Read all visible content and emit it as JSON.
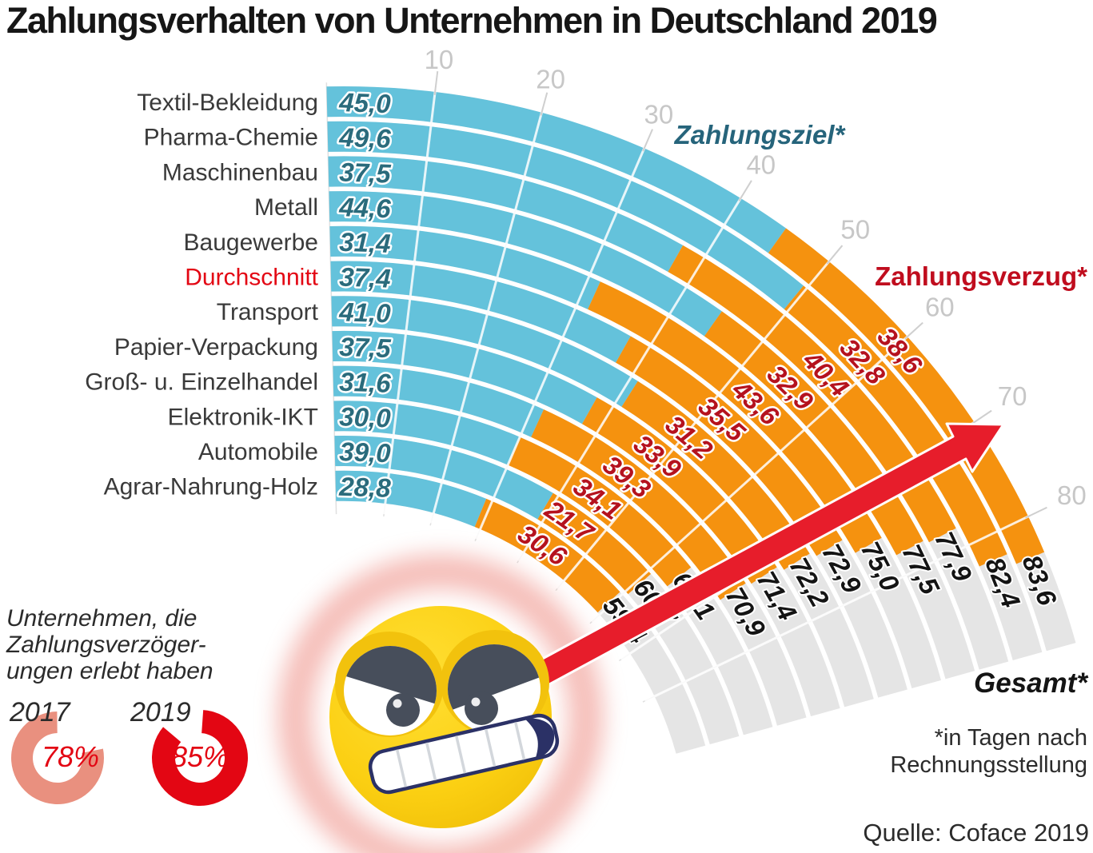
{
  "title": "Zahlungsverhalten von Unternehmen in Deutschland 2019",
  "chart_data": {
    "type": "radial_stacked_bar",
    "unit": "Tage",
    "legend": {
      "ziel": "Zahlungsziel*",
      "verzug": "Zahlungsverzug*",
      "gesamt": "Gesamt*"
    },
    "axis_ticks": [
      10,
      20,
      30,
      40,
      50,
      60,
      70,
      80
    ],
    "series_names": [
      "Zahlungsziel",
      "Zahlungsverzug",
      "Gesamt"
    ],
    "rows": [
      {
        "label": "Textil-Bekleidung",
        "ziel": 45.0,
        "verzug": 38.6,
        "gesamt": 83.6,
        "highlight": false
      },
      {
        "label": "Pharma-Chemie",
        "ziel": 49.6,
        "verzug": 32.8,
        "gesamt": 82.4,
        "highlight": false
      },
      {
        "label": "Maschinenbau",
        "ziel": 37.5,
        "verzug": 40.4,
        "gesamt": 77.9,
        "highlight": false
      },
      {
        "label": "Metall",
        "ziel": 44.6,
        "verzug": 32.9,
        "gesamt": 77.5,
        "highlight": false
      },
      {
        "label": "Baugewerbe",
        "ziel": 31.4,
        "verzug": 43.6,
        "gesamt": 75.0,
        "highlight": false
      },
      {
        "label": "Durchschnitt",
        "ziel": 37.4,
        "verzug": 35.5,
        "gesamt": 72.9,
        "highlight": true
      },
      {
        "label": "Transport",
        "ziel": 41.0,
        "verzug": 31.2,
        "gesamt": 72.2,
        "highlight": false
      },
      {
        "label": "Papier-Verpackung",
        "ziel": 37.5,
        "verzug": 33.9,
        "gesamt": 71.4,
        "highlight": false
      },
      {
        "label": "Groß- u. Einzelhandel",
        "ziel": 31.6,
        "verzug": 39.3,
        "gesamt": 70.9,
        "highlight": false
      },
      {
        "label": "Elektronik-IKT",
        "ziel": 30.0,
        "verzug": 34.1,
        "gesamt": 64.1,
        "highlight": false
      },
      {
        "label": "Automobile",
        "ziel": 39.0,
        "verzug": 21.7,
        "gesamt": 60.7,
        "highlight": false
      },
      {
        "label": "Agrar-Nahrung-Holz",
        "ziel": 28.8,
        "verzug": 30.6,
        "gesamt": 59.4,
        "highlight": false
      }
    ]
  },
  "panel": {
    "line1": "Unternehmen, die",
    "line2": "Zahlungsverzöger-",
    "line3": "ungen erlebt haben",
    "donuts": [
      {
        "year": "2017",
        "label": "78%",
        "pct": 78,
        "color": "#E9907F",
        "gap_center_deg": 39
      },
      {
        "year": "2019",
        "label": "85%",
        "pct": 85,
        "color": "#E30613",
        "gap_center_deg": 337
      }
    ]
  },
  "footnote": {
    "line1": "*in Tagen nach",
    "line2": "Rechnungsstellung"
  },
  "source": "Quelle: Coface 2019",
  "colors": {
    "ziel_band": "#64C2DB",
    "verzug_band": "#F5920F",
    "gesamt_band": "#E5E5E5",
    "ziel_value_text": "#2A6B7C",
    "verzug_value_text": "#B5121E",
    "gesamt_value_text": "#141414",
    "row_label": "#3A3A3A",
    "highlight_red": "#E30613",
    "legend_ziel_text": "#26647B",
    "legend_verzug_text": "#C00D1E",
    "tick_gray": "#C7C7C7",
    "arrow_red": "#E71D2B",
    "emoji_yellow": "#FBCF12",
    "emoji_dark": "#474E5B"
  }
}
